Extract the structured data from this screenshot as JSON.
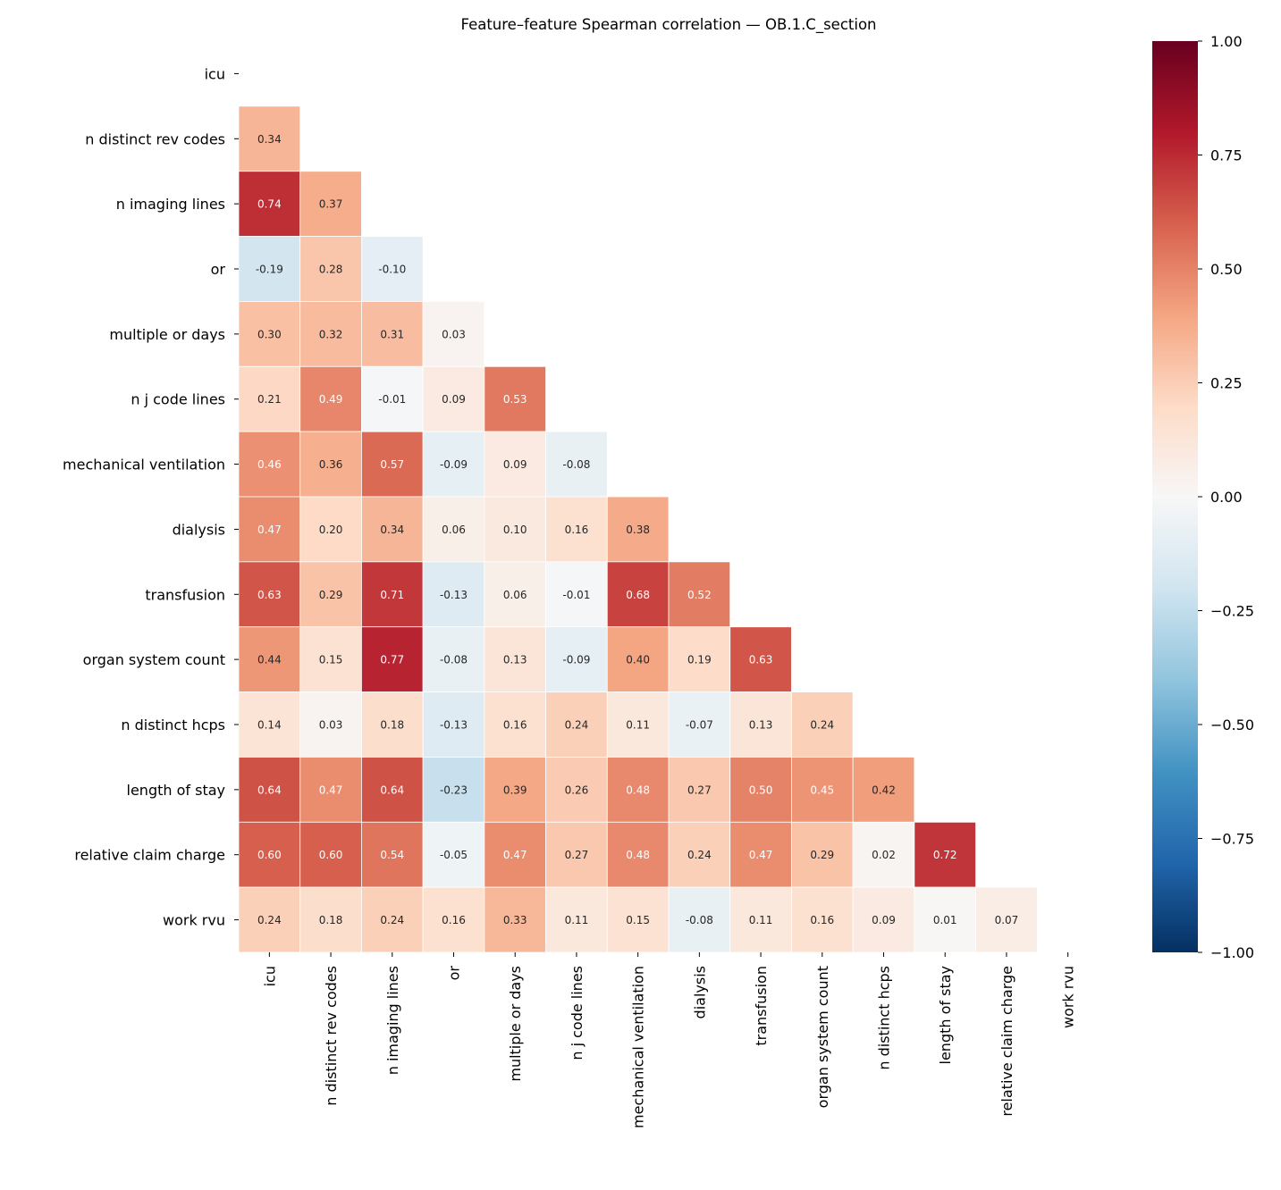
{
  "chart_data": {
    "type": "heatmap",
    "title": "Feature–feature Spearman correlation — OB.1.C_section",
    "labels": [
      "icu",
      "n distinct rev codes",
      "n imaging lines",
      "or",
      "multiple or days",
      "n j code lines",
      "mechanical ventilation",
      "dialysis",
      "transfusion",
      "organ system count",
      "n distinct hcps",
      "length of stay",
      "relative claim charge",
      "work rvu"
    ],
    "mask": "upper triangle including diagonal",
    "colormap": "RdBu_r",
    "vmin": -1.0,
    "vmax": 1.0,
    "colorbar_ticks": [
      "1.00",
      "0.75",
      "0.50",
      "0.25",
      "0.00",
      "−0.25",
      "−0.50",
      "−0.75",
      "−1.00"
    ],
    "values": [
      [],
      [
        0.34
      ],
      [
        0.74,
        0.37
      ],
      [
        -0.19,
        0.28,
        -0.1
      ],
      [
        0.3,
        0.32,
        0.31,
        0.03
      ],
      [
        0.21,
        0.49,
        -0.01,
        0.09,
        0.53
      ],
      [
        0.46,
        0.36,
        0.57,
        -0.09,
        0.09,
        -0.08
      ],
      [
        0.47,
        0.2,
        0.34,
        0.06,
        0.1,
        0.16,
        0.38
      ],
      [
        0.63,
        0.29,
        0.71,
        -0.13,
        0.06,
        -0.01,
        0.68,
        0.52
      ],
      [
        0.44,
        0.15,
        0.77,
        -0.08,
        0.13,
        -0.09,
        0.4,
        0.19,
        0.63
      ],
      [
        0.14,
        0.03,
        0.18,
        -0.13,
        0.16,
        0.24,
        0.11,
        -0.07,
        0.13,
        0.24
      ],
      [
        0.64,
        0.47,
        0.64,
        -0.23,
        0.39,
        0.26,
        0.48,
        0.27,
        0.5,
        0.45,
        0.42
      ],
      [
        0.6,
        0.6,
        0.54,
        -0.05,
        0.47,
        0.27,
        0.48,
        0.24,
        0.47,
        0.29,
        0.02,
        0.72
      ],
      [
        0.24,
        0.18,
        0.24,
        0.16,
        0.33,
        0.11,
        0.15,
        -0.08,
        0.11,
        0.16,
        0.09,
        0.01,
        0.07
      ]
    ]
  }
}
